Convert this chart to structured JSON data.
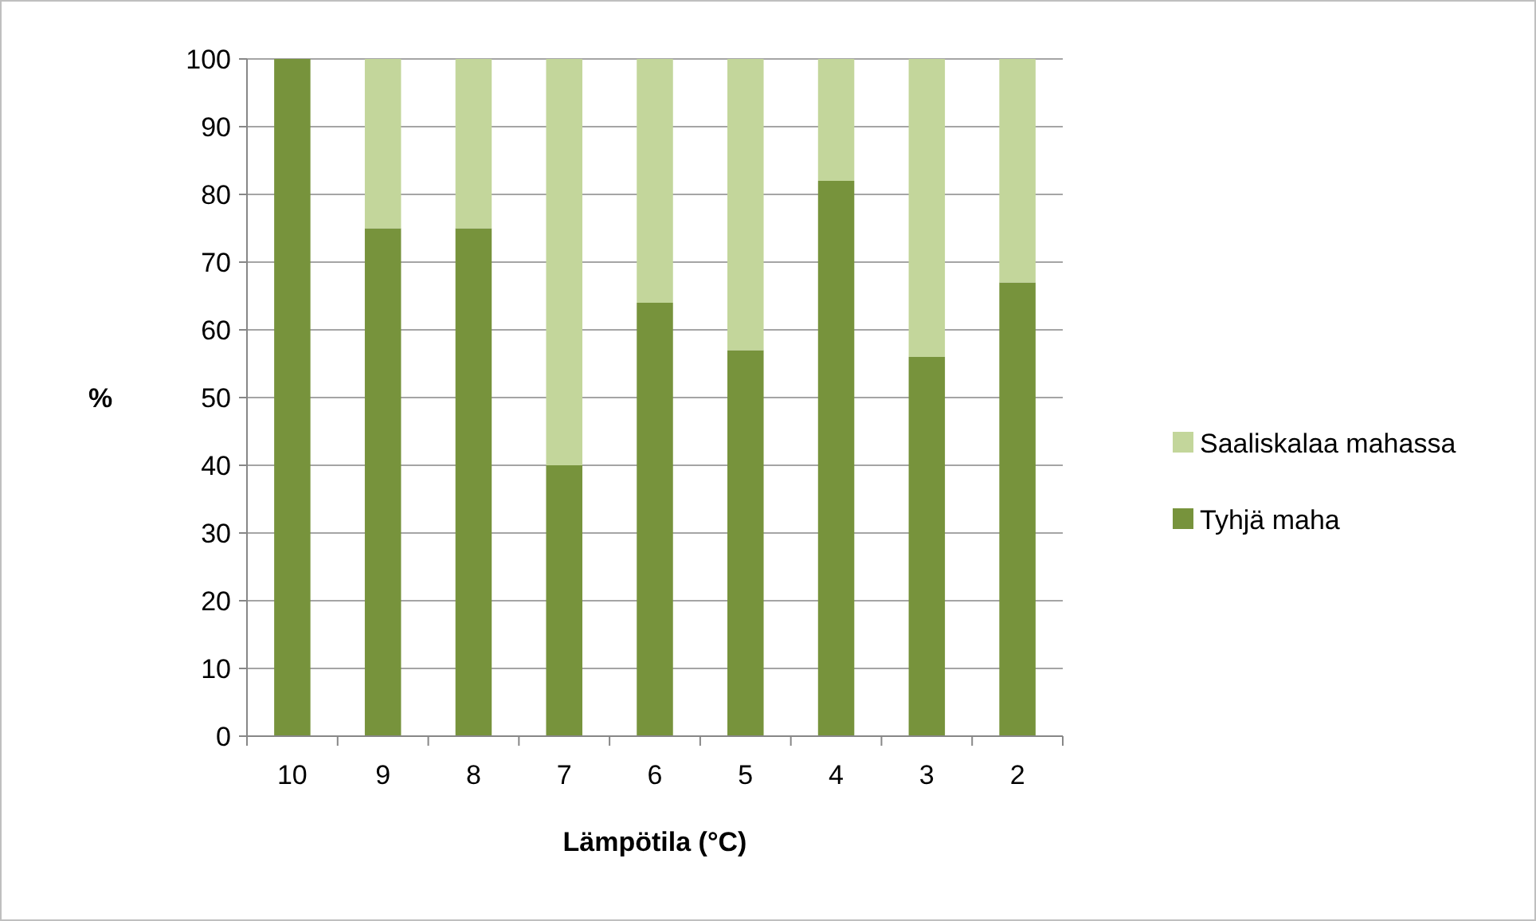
{
  "chart_data": {
    "type": "bar",
    "stacked": true,
    "xlabel": "Lämpötila (°C)",
    "ylabel": "%",
    "categories": [
      "10",
      "9",
      "8",
      "7",
      "6",
      "5",
      "4",
      "3",
      "2"
    ],
    "series": [
      {
        "name": "Tyhjä maha",
        "color": "#77933c",
        "values": [
          100,
          75,
          75,
          40,
          64,
          57,
          82,
          56,
          67
        ]
      },
      {
        "name": "Saaliskalaa mahassa",
        "color": "#c3d69b",
        "values": [
          0,
          25,
          25,
          60,
          36,
          43,
          18,
          44,
          33
        ]
      }
    ],
    "ylim": [
      0,
      100
    ],
    "yticks": [
      0,
      10,
      20,
      30,
      40,
      50,
      60,
      70,
      80,
      90,
      100
    ],
    "grid": "y",
    "legend": "right"
  }
}
